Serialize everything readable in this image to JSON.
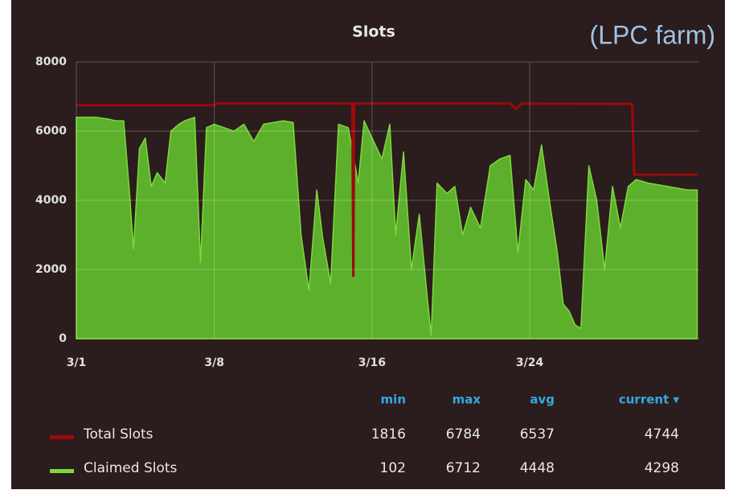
{
  "chart_data": {
    "type": "area",
    "title": "Slots",
    "annotation": "(LPC farm)",
    "xlim": [
      0,
      31.6
    ],
    "xticks": [
      {
        "value": 0,
        "label": "3/1"
      },
      {
        "value": 7,
        "label": "3/8"
      },
      {
        "value": 15,
        "label": "3/16"
      },
      {
        "value": 23,
        "label": "3/24"
      }
    ],
    "ylim": [
      0,
      8000
    ],
    "yticks": [
      0,
      2000,
      4000,
      6000,
      8000
    ],
    "grid": true,
    "legend_columns": [
      "min",
      "max",
      "avg",
      "current ▾"
    ],
    "series": [
      {
        "name": "Claimed Slots",
        "color": "#5cb02c",
        "line_color": "#7fd83a",
        "fill": true,
        "x": [
          0,
          1,
          1.6,
          2.0,
          2.4,
          2.7,
          2.9,
          3.2,
          3.5,
          3.8,
          4.1,
          4.5,
          4.8,
          5.2,
          5.5,
          6.0,
          6.3,
          6.6,
          7.0,
          7.5,
          8,
          8.5,
          9,
          9.5,
          10.5,
          11,
          11.4,
          11.8,
          12.2,
          12.5,
          12.9,
          13.3,
          13.8,
          14.3,
          14.6,
          15.0,
          15.5,
          15.9,
          16.2,
          16.6,
          17.0,
          17.4,
          17.8,
          18.0,
          18.3,
          18.8,
          19.2,
          19.6,
          20,
          20.5,
          21,
          21.5,
          22,
          22.4,
          22.8,
          23.2,
          23.6,
          24,
          24.4,
          24.7,
          25.0,
          25.3,
          25.6,
          26.0,
          26.4,
          26.8,
          27.2,
          27.6,
          28,
          28.4,
          29,
          30,
          31,
          31.5
        ],
        "values": [
          6400,
          6400,
          6350,
          6300,
          6300,
          4200,
          2600,
          5500,
          5800,
          4400,
          4800,
          4500,
          6000,
          6200,
          6300,
          6400,
          2200,
          6100,
          6200,
          6100,
          6000,
          6200,
          5700,
          6200,
          6300,
          6250,
          3000,
          1400,
          4300,
          2900,
          1600,
          6200,
          6100,
          4500,
          6300,
          5800,
          5200,
          6200,
          3000,
          5400,
          2000,
          3600,
          1200,
          100,
          4500,
          4200,
          4400,
          3000,
          3800,
          3200,
          5000,
          5200,
          5300,
          2500,
          4600,
          4300,
          5600,
          4000,
          2500,
          1000,
          800,
          400,
          300,
          5000,
          4000,
          2000,
          4400,
          3200,
          4400,
          4600,
          4500,
          4400,
          4300,
          4300
        ],
        "legend_values": [
          102,
          6712,
          4448,
          4298
        ]
      },
      {
        "name": "Total Slots",
        "color": "#9b0a0a",
        "fill": false,
        "x": [
          0,
          7,
          7.1,
          14.0,
          14.05,
          14.1,
          22,
          22.3,
          22.6,
          28.2,
          28.3,
          31.5
        ],
        "values": [
          6750,
          6750,
          6800,
          6800,
          1816,
          6800,
          6800,
          6650,
          6800,
          6784,
          4744,
          4744
        ],
        "legend_values": [
          1816,
          6784,
          6537,
          4744
        ]
      }
    ]
  }
}
